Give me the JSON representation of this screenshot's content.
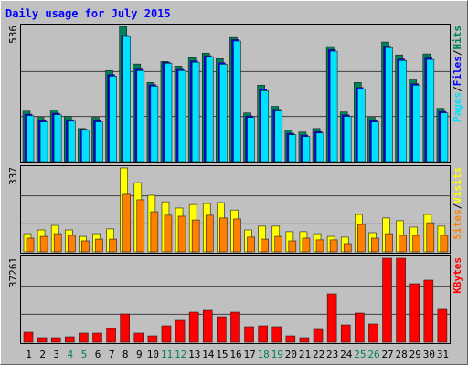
{
  "chart_data": {
    "type": "bar",
    "title": "Daily usage for July 2015",
    "categories": [
      "1",
      "2",
      "3",
      "4",
      "5",
      "6",
      "7",
      "8",
      "9",
      "10",
      "11",
      "12",
      "13",
      "14",
      "15",
      "16",
      "17",
      "18",
      "19",
      "20",
      "21",
      "22",
      "23",
      "24",
      "25",
      "26",
      "27",
      "28",
      "29",
      "30",
      "31"
    ],
    "category_colors": [
      "#000000",
      "#000000",
      "#000000",
      "#00805c",
      "#00805c",
      "#000000",
      "#000000",
      "#000000",
      "#000000",
      "#000000",
      "#00805c",
      "#00805c",
      "#000000",
      "#000000",
      "#000000",
      "#000000",
      "#000000",
      "#00805c",
      "#00805c",
      "#000000",
      "#000000",
      "#000000",
      "#000000",
      "#000000",
      "#00805c",
      "#00805c",
      "#000000",
      "#000000",
      "#000000",
      "#000000",
      "#000000"
    ],
    "legend_separator": "/",
    "grid_lines": 3,
    "panels": [
      {
        "ylim": [
          0,
          536
        ],
        "yticks": [
          536
        ],
        "series": [
          {
            "name": "Hits",
            "color": "#00805c",
            "values": [
              200,
              175,
              204,
              179,
              131,
              175,
              361,
              536,
              387,
              314,
              397,
              379,
              412,
              430,
              408,
              492,
              193,
              303,
              219,
              124,
              117,
              131,
              456,
              197,
              314,
              175,
              474,
              423,
              324,
              427,
              211
            ]
          },
          {
            "name": "Files",
            "color": "#0000ff",
            "values": [
              188,
              163,
              192,
              166,
              128,
              163,
              345,
              500,
              367,
              305,
              394,
              366,
              400,
              420,
              392,
              484,
              181,
              287,
              207,
              112,
              105,
              119,
              444,
              185,
              294,
              163,
              458,
              407,
              309,
              411,
              199
            ]
          },
          {
            "name": "Pages",
            "color": "#00e0ff",
            "values": [
              182,
              157,
              186,
              160,
              124,
              157,
              339,
              496,
              361,
              299,
              390,
              361,
              394,
              416,
              386,
              478,
              175,
              281,
              201,
              106,
              99,
              113,
              438,
              179,
              288,
              157,
              452,
              401,
              303,
              405,
              193
            ]
          }
        ]
      },
      {
        "ylim": [
          0,
          337
        ],
        "yticks": [
          337
        ],
        "series": [
          {
            "name": "Visits",
            "color": "#ffff00",
            "values": [
              73,
              88,
              106,
              88,
              62,
              73,
              92,
              337,
              278,
              227,
              201,
              176,
              190,
              194,
              198,
              168,
              88,
              103,
              103,
              81,
              81,
              73,
              62,
              59,
              150,
              77,
              136,
              125,
              99,
              150,
              103
            ]
          },
          {
            "name": "Sites",
            "color": "#ff8000",
            "values": [
              55,
              62,
              73,
              66,
              44,
              51,
              51,
              231,
              209,
              161,
              147,
              143,
              128,
              147,
              136,
              132,
              59,
              51,
              62,
              44,
              55,
              48,
              48,
              33,
              110,
              55,
              73,
              66,
              66,
              117,
              66
            ]
          }
        ]
      },
      {
        "ylim": [
          0,
          37261
        ],
        "yticks": [
          37261
        ],
        "series": [
          {
            "name": "KBytes",
            "color": "#ff0000",
            "values": [
              4455,
              2025,
              2025,
              2430,
              4050,
              4050,
              6075,
              12556,
              4050,
              2835,
              7290,
              9720,
              13365,
              14176,
              11340,
              13365,
              6885,
              7290,
              6885,
              2835,
              2025,
              5670,
              21466,
              7695,
              12960,
              8100,
              37261,
              37261,
              25920,
              27541,
              14580
            ]
          }
        ]
      }
    ]
  }
}
